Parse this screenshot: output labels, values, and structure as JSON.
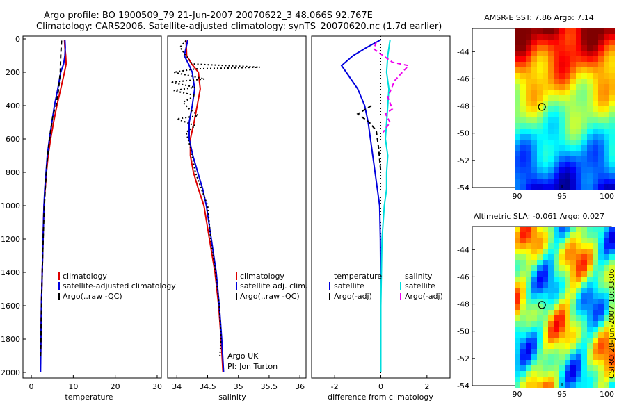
{
  "header": {
    "title_line1": "Argo profile: BO 1900509_79 21-Jun-2007 20070622_3 48.066S 92.767E",
    "title_line2": "Climatology: CARS2006. Satellite-adjusted climatology: synTS_20070620.nc (1.7d earlier)"
  },
  "credit": "CSIRO 28-Jun-2007 10:33:06",
  "colors": {
    "climatology": "#dd0000",
    "satellite": "#0000dd",
    "argo": "#000000",
    "sal_satellite": "#00dddd",
    "sal_argo": "#ee00ee"
  },
  "chart_data": [
    {
      "type": "line",
      "name": "temperature-panel",
      "xlabel": "temperature",
      "ylabel": "",
      "xlim": [
        -2,
        31
      ],
      "ylim": [
        2050,
        0
      ],
      "xticks": [
        "0",
        "10",
        "20",
        "30"
      ],
      "yticks": [
        "0",
        "200",
        "400",
        "600",
        "800",
        "1000",
        "1200",
        "1400",
        "1600",
        "1800",
        "2000"
      ],
      "legend": [
        "climatology",
        "satellite-adjusted climatology",
        "Argo(..raw -QC)"
      ],
      "legend_position": "lower-right",
      "series": [
        {
          "name": "climatology",
          "points": [
            [
              7.9,
              5
            ],
            [
              8.0,
              50
            ],
            [
              8.2,
              100
            ],
            [
              8.3,
              150
            ],
            [
              7.9,
              200
            ],
            [
              7.0,
              300
            ],
            [
              6.1,
              400
            ],
            [
              5.3,
              500
            ],
            [
              4.6,
              600
            ],
            [
              4.0,
              700
            ],
            [
              3.6,
              800
            ],
            [
              3.3,
              900
            ],
            [
              3.0,
              1000
            ],
            [
              2.8,
              1200
            ],
            [
              2.6,
              1400
            ],
            [
              2.4,
              1600
            ],
            [
              2.3,
              1800
            ],
            [
              2.2,
              1950
            ]
          ]
        },
        {
          "name": "satellite-adjusted climatology",
          "points": [
            [
              8.0,
              5
            ],
            [
              8.1,
              50
            ],
            [
              8.0,
              100
            ],
            [
              7.7,
              150
            ],
            [
              7.0,
              200
            ],
            [
              6.3,
              300
            ],
            [
              5.5,
              400
            ],
            [
              4.9,
              500
            ],
            [
              4.3,
              600
            ],
            [
              3.8,
              700
            ],
            [
              3.5,
              800
            ],
            [
              3.2,
              900
            ],
            [
              3.0,
              1000
            ],
            [
              2.8,
              1200
            ],
            [
              2.6,
              1400
            ],
            [
              2.4,
              1600
            ],
            [
              2.3,
              1800
            ],
            [
              2.2,
              2000
            ]
          ]
        },
        {
          "name": "Argo(..raw -QC)",
          "points": [
            [
              7.2,
              10
            ],
            [
              7.0,
              100
            ],
            [
              6.9,
              200
            ],
            [
              6.5,
              300
            ],
            [
              5.9,
              400
            ],
            [
              5.2,
              450
            ],
            [
              4.6,
              550
            ],
            [
              4.1,
              650
            ],
            [
              3.7,
              750
            ],
            [
              3.3,
              900
            ],
            [
              3.0,
              1050
            ],
            [
              2.7,
              1300
            ],
            [
              2.5,
              1500
            ],
            [
              2.3,
              1800
            ],
            [
              2.2,
              1900
            ]
          ]
        }
      ]
    },
    {
      "type": "line",
      "name": "salinity-panel",
      "xlabel": "salinity",
      "xlim": [
        33.85,
        36.1
      ],
      "ylim": [
        2050,
        0
      ],
      "xticks": [
        "34",
        "34.5",
        "35",
        "35.5",
        "36"
      ],
      "legend": [
        "climatology",
        "satellite adj. clim.",
        "Argo(..raw -QC)"
      ],
      "legend_position": "lower-right",
      "annotations": [
        "Argo UK",
        "PI: Jon Turton"
      ],
      "series": [
        {
          "name": "climatology",
          "points": [
            [
              34.15,
              5
            ],
            [
              34.16,
              100
            ],
            [
              34.24,
              150
            ],
            [
              34.35,
              200
            ],
            [
              34.38,
              300
            ],
            [
              34.33,
              400
            ],
            [
              34.28,
              500
            ],
            [
              34.22,
              600
            ],
            [
              34.22,
              700
            ],
            [
              34.27,
              800
            ],
            [
              34.35,
              900
            ],
            [
              34.44,
              1000
            ],
            [
              34.53,
              1200
            ],
            [
              34.62,
              1400
            ],
            [
              34.68,
              1600
            ],
            [
              34.72,
              1800
            ],
            [
              34.75,
              2000
            ]
          ]
        },
        {
          "name": "satellite adj. clim.",
          "points": [
            [
              34.18,
              5
            ],
            [
              34.12,
              100
            ],
            [
              34.19,
              150
            ],
            [
              34.25,
              200
            ],
            [
              34.29,
              300
            ],
            [
              34.25,
              400
            ],
            [
              34.2,
              500
            ],
            [
              34.2,
              600
            ],
            [
              34.26,
              700
            ],
            [
              34.34,
              800
            ],
            [
              34.42,
              900
            ],
            [
              34.48,
              1000
            ],
            [
              34.56,
              1200
            ],
            [
              34.64,
              1400
            ],
            [
              34.69,
              1600
            ],
            [
              34.73,
              1800
            ],
            [
              34.76,
              2000
            ]
          ]
        },
        {
          "name": "Argo(..raw -QC)",
          "points": [
            [
              34.15,
              10
            ],
            [
              34.05,
              50
            ],
            [
              34.25,
              150
            ],
            [
              35.35,
              170
            ],
            [
              34.3,
              180
            ],
            [
              33.95,
              200
            ],
            [
              34.45,
              240
            ],
            [
              33.9,
              260
            ],
            [
              34.3,
              290
            ],
            [
              33.95,
              310
            ],
            [
              34.3,
              340
            ],
            [
              34.1,
              380
            ],
            [
              34.2,
              420
            ],
            [
              34.35,
              460
            ],
            [
              34.0,
              480
            ],
            [
              34.3,
              520
            ],
            [
              34.15,
              560
            ],
            [
              34.22,
              650
            ],
            [
              34.3,
              800
            ],
            [
              34.4,
              900
            ],
            [
              34.5,
              1000
            ],
            [
              34.55,
              1200
            ],
            [
              34.63,
              1400
            ],
            [
              34.69,
              1600
            ],
            [
              34.72,
              1800
            ],
            [
              34.7,
              1900
            ]
          ]
        }
      ]
    },
    {
      "type": "line",
      "name": "difference-panel",
      "xlabel": "difference from climatology",
      "xlim": [
        -3,
        3
      ],
      "ylim": [
        2050,
        0
      ],
      "xticks": [
        "-2",
        "0",
        "2"
      ],
      "legend": [
        "temperature",
        "satellite",
        "Argo(-adj)",
        "salinity",
        "satellite",
        "Argo(-adj)"
      ],
      "legend_position": "lower-center",
      "series": [
        {
          "name": "temperature satellite",
          "points": [
            [
              0.0,
              5
            ],
            [
              -0.6,
              50
            ],
            [
              -1.2,
              100
            ],
            [
              -1.7,
              160
            ],
            [
              -1.5,
              200
            ],
            [
              -1.0,
              300
            ],
            [
              -0.7,
              400
            ],
            [
              -0.55,
              500
            ],
            [
              -0.45,
              600
            ],
            [
              -0.35,
              700
            ],
            [
              -0.25,
              800
            ],
            [
              -0.15,
              900
            ],
            [
              -0.05,
              1000
            ],
            [
              -0.02,
              1200
            ],
            [
              0.0,
              1600
            ],
            [
              0.0,
              2000
            ]
          ]
        },
        {
          "name": "temperature Argo(-adj)",
          "points": [
            [
              -0.4,
              400
            ],
            [
              -1.0,
              450
            ],
            [
              -0.5,
              500
            ],
            [
              -0.2,
              550
            ],
            [
              -0.1,
              650
            ],
            [
              0.0,
              800
            ]
          ]
        },
        {
          "name": "salinity satellite",
          "points": [
            [
              0.4,
              5
            ],
            [
              0.3,
              100
            ],
            [
              0.25,
              200
            ],
            [
              0.35,
              300
            ],
            [
              0.3,
              400
            ],
            [
              0.25,
              500
            ],
            [
              0.2,
              600
            ],
            [
              0.3,
              700
            ],
            [
              0.25,
              800
            ],
            [
              0.25,
              900
            ],
            [
              0.15,
              1000
            ],
            [
              0.05,
              1200
            ],
            [
              0.0,
              1600
            ],
            [
              0.0,
              2000
            ]
          ]
        },
        {
          "name": "salinity Argo(-adj)",
          "points": [
            [
              -0.2,
              20
            ],
            [
              -0.3,
              60
            ],
            [
              0.5,
              140
            ],
            [
              1.2,
              160
            ],
            [
              0.6,
              250
            ],
            [
              0.3,
              350
            ],
            [
              0.5,
              420
            ],
            [
              0.2,
              450
            ],
            [
              0.4,
              500
            ],
            [
              0.1,
              560
            ]
          ]
        }
      ]
    },
    {
      "type": "heatmap",
      "name": "sst-map",
      "title": "AMSR-E SST: 7.86 Argo: 7.14",
      "xticks": [
        "90",
        "95",
        "100"
      ],
      "yticks": [
        "-44",
        "-46",
        "-48",
        "-50",
        "-52",
        "-54"
      ],
      "xlim": [
        85,
        100.5
      ],
      "ylim": [
        -54,
        -42.3
      ],
      "marker": [
        92.767,
        -48.066
      ]
    },
    {
      "type": "heatmap",
      "name": "sla-map",
      "title": "Altimetric SLA: -0.061 Argo: 0.027",
      "xticks": [
        "90",
        "95",
        "100"
      ],
      "yticks": [
        "-44",
        "-46",
        "-48",
        "-50",
        "-52",
        "-54"
      ],
      "xlim": [
        85,
        100.5
      ],
      "ylim": [
        -54,
        -42.3
      ],
      "marker": [
        92.767,
        -48.066
      ]
    }
  ]
}
